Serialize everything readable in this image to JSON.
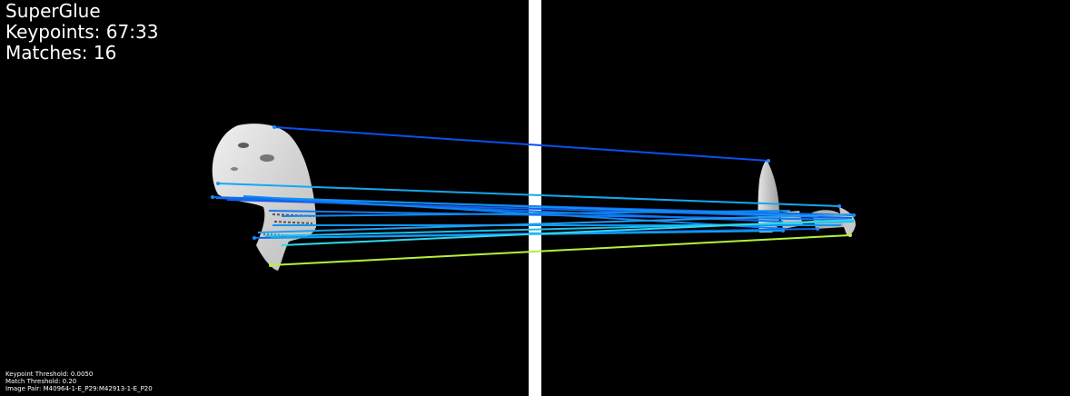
{
  "header": {
    "title": "SuperGlue",
    "keypoints": "Keypoints: 67:33",
    "matches": "Matches: 16"
  },
  "footer": {
    "keypoint_threshold": "Keypoint Threshold: 0.0050",
    "match_threshold": "Match Threshold: 0.20",
    "image_pair": "Image Pair: M40964-1-E_P29:M42913-1-E_P20"
  },
  "colors": {
    "background": "#000000",
    "separator": "#ffffff",
    "text": "#ffffff",
    "specimen": "#d9d9d9"
  }
}
